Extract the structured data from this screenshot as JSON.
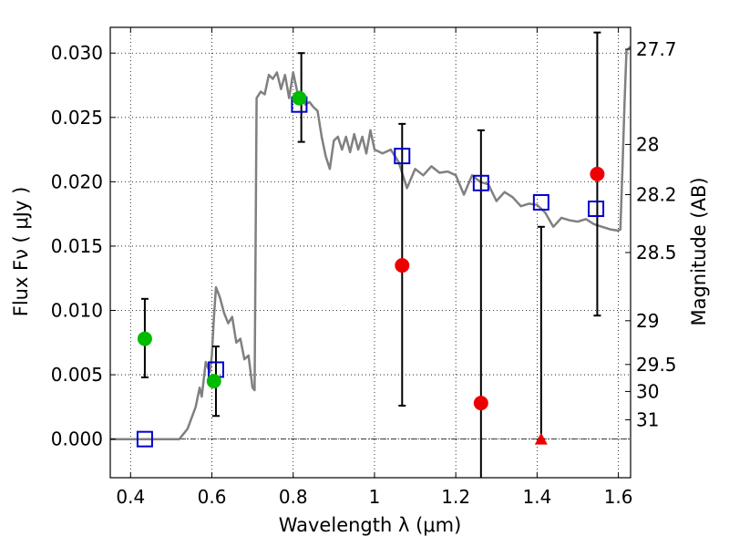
{
  "chart_data": {
    "type": "scatter",
    "title": "",
    "xlabel": "Wavelength  λ (μm)",
    "ylabel_left": "Flux  Fν  ( μJy )",
    "ylabel_right": "Magnitude (AB)",
    "xlim": [
      0.35,
      1.63
    ],
    "ylim": [
      -0.003,
      0.032
    ],
    "grid": true,
    "x_ticks": [
      0.4,
      0.6,
      0.8,
      1.0,
      1.2,
      1.4,
      1.6
    ],
    "x_tick_labels": [
      "0.4",
      "0.6",
      "0.8",
      "1",
      "1.2",
      "1.4",
      "1.6"
    ],
    "y_ticks": [
      0.0,
      0.005,
      0.01,
      0.015,
      0.02,
      0.025,
      0.03
    ],
    "y_tick_labels": [
      "0.000",
      "0.005",
      "0.010",
      "0.015",
      "0.020",
      "0.025",
      "0.030"
    ],
    "right_ticks": [
      {
        "label": "27.7",
        "flux": 0.0303
      },
      {
        "label": "28",
        "flux": 0.0229
      },
      {
        "label": "28.2",
        "flux": 0.019
      },
      {
        "label": "28.5",
        "flux": 0.0145
      },
      {
        "label": "29",
        "flux": 0.0092
      },
      {
        "label": "29.5",
        "flux": 0.0058
      },
      {
        "label": "30",
        "flux": 0.0037
      },
      {
        "label": "31",
        "flux": 0.0015
      }
    ],
    "colors": {
      "sed_line": "#808080",
      "model_squares": "#0000cc",
      "green_points": "#00bb00",
      "red_points": "#ee0000",
      "errorbars": "#000000",
      "zero_line": "#000000"
    },
    "series": [
      {
        "kind": "line",
        "points": [
          [
            0.35,
            0.0
          ],
          [
            0.52,
            0.0
          ],
          [
            0.54,
            0.0008
          ],
          [
            0.56,
            0.0025
          ],
          [
            0.57,
            0.004
          ],
          [
            0.575,
            0.0033
          ],
          [
            0.585,
            0.006
          ],
          [
            0.595,
            0.0052
          ],
          [
            0.6,
            0.0065
          ],
          [
            0.605,
            0.0095
          ],
          [
            0.61,
            0.0118
          ],
          [
            0.62,
            0.011
          ],
          [
            0.63,
            0.0098
          ],
          [
            0.64,
            0.009
          ],
          [
            0.65,
            0.0095
          ],
          [
            0.66,
            0.0075
          ],
          [
            0.67,
            0.0078
          ],
          [
            0.68,
            0.0062
          ],
          [
            0.69,
            0.0065
          ],
          [
            0.7,
            0.004
          ],
          [
            0.705,
            0.0038
          ],
          [
            0.71,
            0.0265
          ],
          [
            0.72,
            0.027
          ],
          [
            0.73,
            0.0268
          ],
          [
            0.74,
            0.0283
          ],
          [
            0.75,
            0.028
          ],
          [
            0.76,
            0.0285
          ],
          [
            0.77,
            0.0272
          ],
          [
            0.78,
            0.0283
          ],
          [
            0.79,
            0.0265
          ],
          [
            0.8,
            0.0285
          ],
          [
            0.81,
            0.027
          ],
          [
            0.82,
            0.0267
          ],
          [
            0.83,
            0.026
          ],
          [
            0.84,
            0.0262
          ],
          [
            0.85,
            0.0258
          ],
          [
            0.86,
            0.0255
          ],
          [
            0.87,
            0.0235
          ],
          [
            0.88,
            0.022
          ],
          [
            0.89,
            0.021
          ],
          [
            0.9,
            0.0232
          ],
          [
            0.91,
            0.0235
          ],
          [
            0.92,
            0.0225
          ],
          [
            0.93,
            0.0235
          ],
          [
            0.94,
            0.0223
          ],
          [
            0.95,
            0.0237
          ],
          [
            0.96,
            0.0225
          ],
          [
            0.97,
            0.0235
          ],
          [
            0.98,
            0.0222
          ],
          [
            0.99,
            0.024
          ],
          [
            1.0,
            0.0225
          ],
          [
            1.02,
            0.0222
          ],
          [
            1.04,
            0.0225
          ],
          [
            1.06,
            0.0215
          ],
          [
            1.08,
            0.0195
          ],
          [
            1.1,
            0.021
          ],
          [
            1.12,
            0.0205
          ],
          [
            1.14,
            0.0212
          ],
          [
            1.16,
            0.0207
          ],
          [
            1.18,
            0.0208
          ],
          [
            1.2,
            0.0205
          ],
          [
            1.22,
            0.019
          ],
          [
            1.24,
            0.0205
          ],
          [
            1.26,
            0.02
          ],
          [
            1.28,
            0.0198
          ],
          [
            1.3,
            0.0185
          ],
          [
            1.32,
            0.0192
          ],
          [
            1.34,
            0.0188
          ],
          [
            1.36,
            0.0181
          ],
          [
            1.38,
            0.0183
          ],
          [
            1.4,
            0.0182
          ],
          [
            1.42,
            0.0176
          ],
          [
            1.44,
            0.0165
          ],
          [
            1.46,
            0.0172
          ],
          [
            1.48,
            0.017
          ],
          [
            1.5,
            0.0169
          ],
          [
            1.52,
            0.0171
          ],
          [
            1.54,
            0.0167
          ],
          [
            1.56,
            0.0165
          ],
          [
            1.58,
            0.0163
          ],
          [
            1.6,
            0.0162
          ],
          [
            1.605,
            0.0163
          ],
          [
            1.61,
            0.021
          ],
          [
            1.615,
            0.026
          ],
          [
            1.62,
            0.0302
          ],
          [
            1.63,
            0.0305
          ]
        ]
      },
      {
        "kind": "square",
        "points": [
          [
            0.435,
            0.0
          ],
          [
            0.61,
            0.0054
          ],
          [
            0.815,
            0.026
          ],
          [
            1.068,
            0.022
          ],
          [
            1.262,
            0.0199
          ],
          [
            1.41,
            0.0184
          ],
          [
            1.545,
            0.0179
          ]
        ]
      },
      {
        "kind": "green",
        "points": [
          [
            0.435,
            0.0078
          ],
          [
            0.605,
            0.0045
          ],
          [
            0.815,
            0.0265
          ]
        ]
      },
      {
        "kind": "red",
        "points": [
          [
            1.068,
            0.0135
          ],
          [
            1.262,
            0.0028
          ],
          [
            1.548,
            0.0206
          ]
        ]
      },
      {
        "kind": "red-triangle",
        "points": [
          [
            1.41,
            0.0
          ]
        ]
      }
    ],
    "errorbars": [
      {
        "x": 0.435,
        "low": 0.0048,
        "high": 0.0109
      },
      {
        "x": 0.61,
        "low": 0.0018,
        "high": 0.0072
      },
      {
        "x": 0.82,
        "low": 0.0231,
        "high": 0.03
      },
      {
        "x": 1.068,
        "low": 0.0026,
        "high": 0.0245
      },
      {
        "x": 1.262,
        "low": -0.003,
        "high": 0.024
      },
      {
        "x": 1.41,
        "low": 0.0,
        "high": 0.0165
      },
      {
        "x": 1.548,
        "low": 0.0096,
        "high": 0.0316
      }
    ]
  }
}
